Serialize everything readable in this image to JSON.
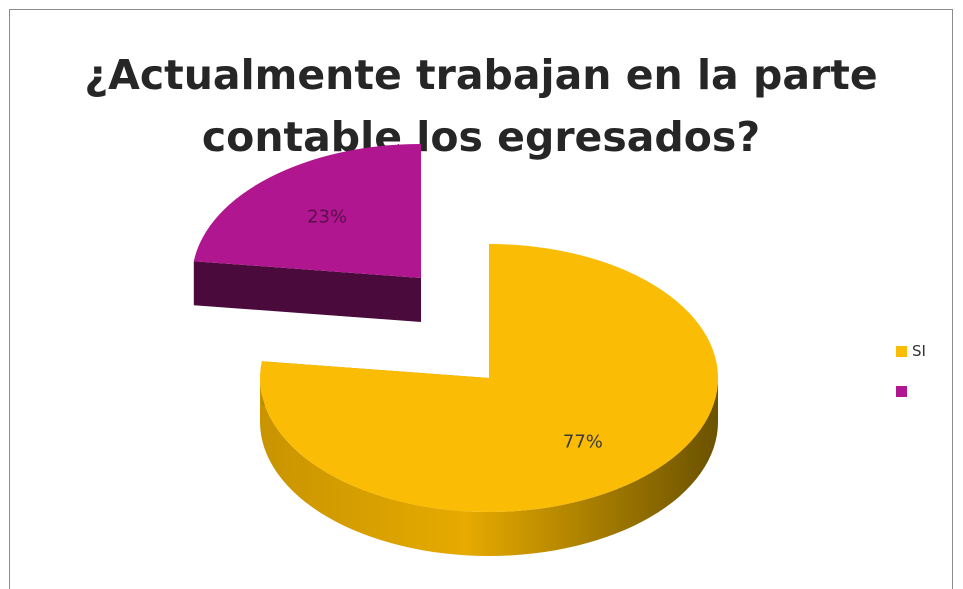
{
  "chart_data": {
    "type": "pie",
    "style": "3d-exploded",
    "title": [
      "¿Actualmente trabajan en la parte",
      "contable los egresados?"
    ],
    "slices": [
      {
        "name": "SI",
        "value": 77,
        "label": "77%",
        "color": "#fbbc05"
      },
      {
        "name": "",
        "value": 23,
        "label": "23%",
        "color": "#b0168f"
      }
    ],
    "legend_placement": "right"
  }
}
